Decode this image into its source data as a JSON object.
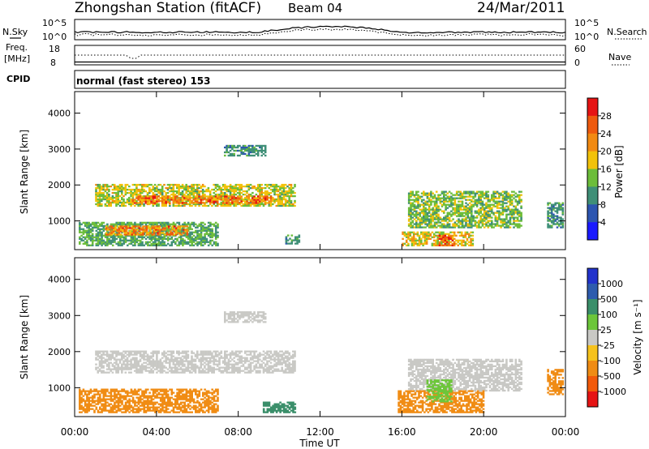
{
  "header": {
    "station": "Zhongshan Station (fitACF)",
    "beam": "Beam 04",
    "date": "24/Mar/2011"
  },
  "nsky_panel": {
    "label": "N.Sky",
    "left_ticks": [
      "10^5",
      "10^0"
    ],
    "right_ticks": [
      "10^5",
      "10^0"
    ],
    "right_label": "N.Search"
  },
  "freq_panel": {
    "label_line1": "Freq.",
    "label_line2": "[MHz]",
    "left_ticks": [
      "18",
      "8"
    ],
    "right_ticks": [
      "60",
      "0"
    ],
    "right_label": "Nave"
  },
  "cpid_panel": {
    "label": "CPID",
    "text": "normal (fast stereo) 153"
  },
  "colors": {
    "power": [
      "#1a1aff",
      "#2c55b0",
      "#3f8f77",
      "#6cbd3a",
      "#f2c20a",
      "#f28a12",
      "#ee5a0e",
      "#e61414"
    ],
    "velocity": [
      "#e61414",
      "#f25a0a",
      "#f08c14",
      "#f6c21c",
      "#c9c9c5",
      "#c9c9c5",
      "#6cc63a",
      "#3a8f6a",
      "#2e5cae",
      "#2233cc"
    ]
  },
  "chart_data": [
    {
      "type": "heatmap",
      "name": "power",
      "ylabel": "Slant Range [km]",
      "ylim": [
        200,
        4600
      ],
      "xlim": [
        0,
        24
      ],
      "yticks": [
        "1000",
        "2000",
        "3000",
        "4000"
      ],
      "colorbar_label": "Power [dB]",
      "colorbar_ticks": [
        "4",
        "8",
        "12",
        "16",
        "20",
        "24",
        "28"
      ],
      "colorbar_range": [
        0,
        32
      ],
      "regions": [
        {
          "t0": 1.0,
          "t1": 10.8,
          "r0": 1400,
          "r1": 2000,
          "value": 16
        },
        {
          "t0": 2.8,
          "t1": 9.6,
          "r0": 1480,
          "r1": 1700,
          "value": 24
        },
        {
          "t0": 0.2,
          "t1": 7.0,
          "r0": 300,
          "r1": 950,
          "value": 12
        },
        {
          "t0": 1.5,
          "t1": 5.5,
          "r0": 600,
          "r1": 850,
          "value": 22
        },
        {
          "t0": 7.3,
          "t1": 9.3,
          "r0": 2800,
          "r1": 3100,
          "value": 10
        },
        {
          "t0": 10.3,
          "t1": 11.0,
          "r0": 350,
          "r1": 600,
          "value": 10
        },
        {
          "t0": 16.3,
          "t1": 21.8,
          "r0": 800,
          "r1": 1800,
          "value": 14
        },
        {
          "t0": 16.0,
          "t1": 19.5,
          "r0": 300,
          "r1": 700,
          "value": 18
        },
        {
          "t0": 17.8,
          "t1": 18.6,
          "r0": 300,
          "r1": 600,
          "value": 28
        },
        {
          "t0": 23.1,
          "t1": 23.9,
          "r0": 800,
          "r1": 1500,
          "value": 10
        }
      ]
    },
    {
      "type": "heatmap",
      "name": "velocity",
      "ylabel": "Slant Range [km]",
      "ylim": [
        200,
        4600
      ],
      "xlim": [
        0,
        24
      ],
      "xticks": [
        "00:00",
        "04:00",
        "08:00",
        "12:00",
        "16:00",
        "20:00",
        "00:00"
      ],
      "xlabel": "Time UT",
      "yticks": [
        "1000",
        "2000",
        "3000",
        "4000"
      ],
      "colorbar_label": "Velocity [m s⁻¹]",
      "colorbar_ticks": [
        "1000",
        "500",
        "100",
        "25",
        "-25",
        "-100",
        "-500",
        "-1000"
      ],
      "regions": [
        {
          "t0": 1.0,
          "t1": 10.8,
          "r0": 1400,
          "r1": 2000,
          "value": 0
        },
        {
          "t0": 7.3,
          "t1": 9.3,
          "r0": 2800,
          "r1": 3100,
          "value": 0
        },
        {
          "t0": 0.2,
          "t1": 7.0,
          "r0": 300,
          "r1": 950,
          "value": -300
        },
        {
          "t0": 9.2,
          "t1": 10.8,
          "r0": 300,
          "r1": 600,
          "value": 200
        },
        {
          "t0": 16.3,
          "t1": 21.8,
          "r0": 900,
          "r1": 1800,
          "value": 0
        },
        {
          "t0": 15.8,
          "t1": 20.0,
          "r0": 300,
          "r1": 900,
          "value": -200
        },
        {
          "t0": 17.2,
          "t1": 18.4,
          "r0": 600,
          "r1": 1200,
          "value": 60
        },
        {
          "t0": 23.1,
          "t1": 23.9,
          "r0": 800,
          "r1": 1500,
          "value": -150
        }
      ]
    }
  ]
}
